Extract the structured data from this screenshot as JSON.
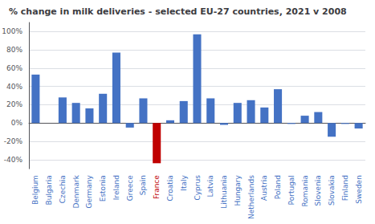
{
  "chart_data": {
    "type": "bar",
    "title": "% change in milk deliveries - selected EU-27 countries, 2021 v 2008",
    "categories": [
      "Belgium",
      "Bulgaria",
      "Czechia",
      "Denmark",
      "Germany",
      "Estonia",
      "Ireland",
      "Greece",
      "Spain",
      "France",
      "Croatia",
      "Italy",
      "Cyprus",
      "Latvia",
      "Lithuania",
      "Hungary",
      "Netherlands",
      "Austria",
      "Poland",
      "Portugal",
      "Romania",
      "Slovenia",
      "Slovakia",
      "Finland",
      "Sweden"
    ],
    "values": [
      53,
      0,
      28,
      22,
      16,
      32,
      77,
      -5,
      27,
      -44,
      3,
      24,
      97,
      27,
      -2,
      22,
      25,
      17,
      37,
      -1,
      8,
      12,
      -15,
      -1,
      -6
    ],
    "colors": [
      "#4472C4",
      "#4472C4",
      "#4472C4",
      "#4472C4",
      "#4472C4",
      "#4472C4",
      "#4472C4",
      "#4472C4",
      "#4472C4",
      "#C00000",
      "#4472C4",
      "#4472C4",
      "#4472C4",
      "#4472C4",
      "#4472C4",
      "#4472C4",
      "#4472C4",
      "#4472C4",
      "#4472C4",
      "#4472C4",
      "#4472C4",
      "#4472C4",
      "#4472C4",
      "#4472C4",
      "#4472C4"
    ],
    "ylim": [
      -50,
      110
    ],
    "yticks": [
      {
        "value": -40,
        "label": "-40%"
      },
      {
        "value": -20,
        "label": "-20%"
      },
      {
        "value": 0,
        "label": "0%"
      },
      {
        "value": 20,
        "label": "20%"
      },
      {
        "value": 40,
        "label": "40%"
      },
      {
        "value": 60,
        "label": "60%"
      },
      {
        "value": 80,
        "label": "80%"
      },
      {
        "value": 100,
        "label": "100%"
      }
    ],
    "grid": true
  }
}
